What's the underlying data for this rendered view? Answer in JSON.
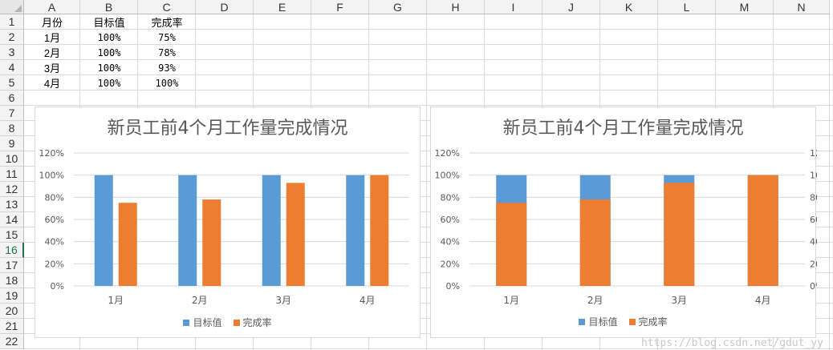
{
  "columns": [
    "A",
    "B",
    "C",
    "D",
    "E",
    "F",
    "G",
    "H",
    "I",
    "J",
    "K",
    "L",
    "M",
    "N"
  ],
  "rows": [
    "1",
    "2",
    "3",
    "4",
    "5",
    "6",
    "7",
    "8",
    "9",
    "10",
    "11",
    "12",
    "13",
    "14",
    "15",
    "16",
    "17",
    "18",
    "19",
    "20",
    "21",
    "22"
  ],
  "active_row": "16",
  "table": {
    "headers": [
      "月份",
      "目标值",
      "完成率"
    ],
    "rows": [
      [
        "1月",
        "100%",
        "75%"
      ],
      [
        "2月",
        "100%",
        "78%"
      ],
      [
        "3月",
        "100%",
        "93%"
      ],
      [
        "4月",
        "100%",
        "100%"
      ]
    ]
  },
  "colors": {
    "target": "#5b9bd5",
    "completion": "#ed7d31",
    "grid": "#d9d9d9",
    "axis_text": "#595959"
  },
  "chart_data": [
    {
      "type": "bar",
      "title": "新员工前4个月工作量完成情况",
      "categories": [
        "1月",
        "2月",
        "3月",
        "4月"
      ],
      "series": [
        {
          "name": "目标值",
          "values": [
            100,
            100,
            100,
            100
          ]
        },
        {
          "name": "完成率",
          "values": [
            75,
            78,
            93,
            100
          ]
        }
      ],
      "yticks": [
        "0%",
        "20%",
        "40%",
        "60%",
        "80%",
        "100%",
        "120%"
      ],
      "ylim": [
        0,
        120
      ],
      "grid": true,
      "legend": "bottom"
    },
    {
      "type": "bar",
      "title": "新员工前4个月工作量完成情况",
      "categories": [
        "1月",
        "2月",
        "3月",
        "4月"
      ],
      "series": [
        {
          "name": "目标值",
          "values": [
            100,
            100,
            100,
            100
          ]
        },
        {
          "name": "完成率",
          "values": [
            75,
            78,
            93,
            100
          ]
        }
      ],
      "yticks": [
        "0%",
        "20%",
        "40%",
        "60%",
        "80%",
        "100%",
        "120%"
      ],
      "ylim": [
        0,
        120
      ],
      "secondary_axis": true,
      "grid": true,
      "legend": "bottom"
    }
  ],
  "watermark": "https://blog.csdn.net/gdut_yy"
}
